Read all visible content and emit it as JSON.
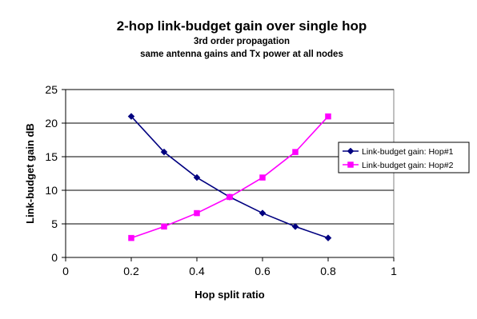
{
  "chart_data": {
    "type": "line",
    "title": "2-hop link-budget gain over single hop",
    "subtitle_lines": [
      "3rd order propagation",
      "same antenna gains and Tx power at all nodes"
    ],
    "xlabel": "Hop split ratio",
    "ylabel": "Link-budget gain dB",
    "xlim": [
      0,
      1
    ],
    "ylim": [
      0,
      25
    ],
    "x_ticks": [
      0,
      0.2,
      0.4,
      0.6,
      0.8,
      1
    ],
    "x_tick_labels": [
      "0",
      "0.2",
      "0.4",
      "0.6",
      "0.8",
      "1"
    ],
    "y_ticks": [
      0,
      5,
      10,
      15,
      20,
      25
    ],
    "y_tick_labels": [
      "0",
      "5",
      "10",
      "15",
      "20",
      "25"
    ],
    "grid": "horizontal",
    "legend_position": "right",
    "x": [
      0.2,
      0.3,
      0.4,
      0.5,
      0.6,
      0.7,
      0.8
    ],
    "series": [
      {
        "name": "Link-budget gain: Hop#1",
        "color": "#000080",
        "marker": "diamond",
        "values": [
          21.0,
          15.7,
          11.9,
          9.0,
          6.6,
          4.6,
          2.9
        ]
      },
      {
        "name": "Link-budget gain: Hop#2",
        "color": "#ff00ff",
        "marker": "square",
        "values": [
          2.9,
          4.6,
          6.6,
          9.0,
          11.9,
          15.7,
          21.0
        ]
      }
    ]
  }
}
